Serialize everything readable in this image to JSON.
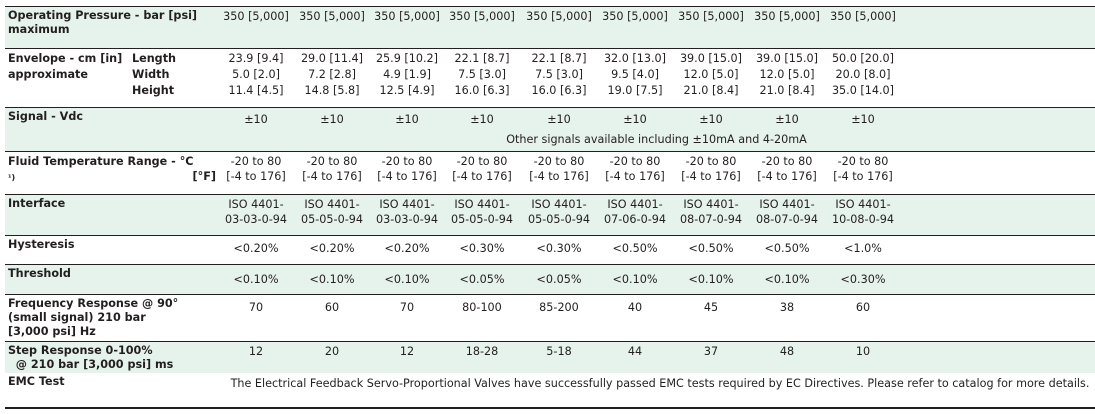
{
  "rows": {
    "pressure": {
      "label": "Operating Pressure - bar [psi]",
      "label2": "maximum",
      "values": [
        "350 [5,000]",
        "350 [5,000]",
        "350 [5,000]",
        "350 [5,000]",
        "350 [5,000]",
        "350 [5,000]",
        "350 [5,000]",
        "350 [5,000]",
        "350 [5,000]"
      ]
    },
    "envelope": {
      "label": "Envelope - cm [in]",
      "label2": "approximate",
      "sub": [
        "Length",
        "Width",
        "Height"
      ],
      "values": [
        [
          "23.9 [9.4]",
          "5.0 [2.0]",
          "11.4 [4.5]"
        ],
        [
          "29.0 [11.4]",
          "7.2 [2.8]",
          "14.8 [5.8]"
        ],
        [
          "25.9 [10.2]",
          "4.9 [1.9]",
          "12.5 [4.9]"
        ],
        [
          "22.1 [8.7]",
          "7.5 [3.0]",
          "16.0 [6.3]"
        ],
        [
          "22.1 [8.7]",
          "7.5 [3.0]",
          "16.0 [6.3]"
        ],
        [
          "32.0 [13.0]",
          "9.5 [4.0]",
          "19.0 [7.5]"
        ],
        [
          "39.0 [15.0]",
          "12.0 [5.0]",
          "21.0 [8.4]"
        ],
        [
          "39.0 [15.0]",
          "12.0 [5.0]",
          "21.0 [8.4]"
        ],
        [
          "50.0 [20.0]",
          "20.0 [8.0]",
          "35.0 [14.0]"
        ]
      ]
    },
    "signal": {
      "label": "Signal - Vdc",
      "values": [
        "±10",
        "±10",
        "±10",
        "±10",
        "±10",
        "±10",
        "±10",
        "±10",
        "±10"
      ],
      "note": "Other signals available including ±10mA and 4-20mA"
    },
    "temperature": {
      "label": "Fluid Temperature Range - °C",
      "label2": "¹)",
      "label3": "[°F]",
      "values": [
        [
          "-20 to 80",
          "[-4 to 176]"
        ],
        [
          "-20 to 80",
          "[-4 to 176]"
        ],
        [
          "-20 to 80",
          "[-4 to 176]"
        ],
        [
          "-20 to 80",
          "[-4 to 176]"
        ],
        [
          "-20 to 80",
          "[-4 to 176]"
        ],
        [
          "-20 to 80",
          "[-4 to 176]"
        ],
        [
          "-20 to 80",
          "[-4 to 176]"
        ],
        [
          "-20 to 80",
          "[-4 to 176]"
        ],
        [
          "-20 to 80",
          "[-4 to 176]"
        ]
      ]
    },
    "interface": {
      "label": "Interface",
      "values": [
        [
          "ISO 4401-",
          "03-03-0-94"
        ],
        [
          "ISO 4401-",
          "05-05-0-94"
        ],
        [
          "ISO 4401-",
          "03-03-0-94"
        ],
        [
          "ISO 4401-",
          "05-05-0-94"
        ],
        [
          "ISO 4401-",
          "05-05-0-94"
        ],
        [
          "ISO 4401-",
          "07-06-0-94"
        ],
        [
          "ISO 4401-",
          "08-07-0-94"
        ],
        [
          "ISO 4401-",
          "08-07-0-94"
        ],
        [
          "ISO 4401-",
          "10-08-0-94"
        ]
      ]
    },
    "hysteresis": {
      "label": "Hysteresis",
      "values": [
        "<0.20%",
        "<0.20%",
        "<0.20%",
        "<0.30%",
        "<0.30%",
        "<0.50%",
        "<0.50%",
        "<0.50%",
        "<1.0%"
      ]
    },
    "threshold": {
      "label": "Threshold",
      "values": [
        "<0.10%",
        "<0.10%",
        "<0.10%",
        "<0.05%",
        "<0.05%",
        "<0.10%",
        "<0.10%",
        "<0.10%",
        "<0.30%"
      ]
    },
    "frequency": {
      "label": "Frequency Response @ 90°",
      "label2": "(small signal) 210 bar",
      "label3": "[3,000 psi] Hz",
      "values": [
        "70",
        "60",
        "70",
        "80-100",
        "85-200",
        "40",
        "45",
        "38",
        "60"
      ]
    },
    "step": {
      "label": "Step Response 0-100%",
      "label2": "@ 210 bar [3,000 psi] ms",
      "values": [
        "12",
        "20",
        "12",
        "18-28",
        "5-18",
        "44",
        "37",
        "48",
        "10"
      ]
    },
    "emc": {
      "label": "EMC Test",
      "note": "The Electrical Feedback Servo-Proportional Valves have successfully passed EMC tests required by EC Directives. Please refer to catalog for more details."
    }
  },
  "colors": {
    "shade": "#e6f2ec",
    "rule": "#231f20"
  }
}
